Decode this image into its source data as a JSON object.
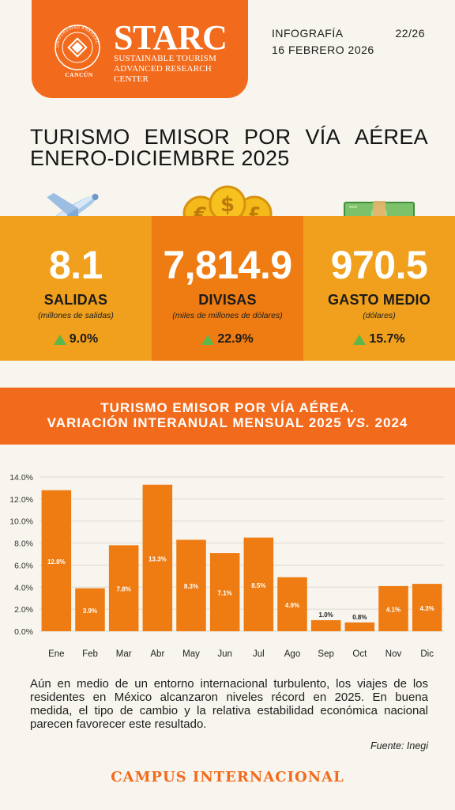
{
  "header": {
    "brand_name": "STARC",
    "brand_sub_1": "SUSTAINABLE TOURISM",
    "brand_sub_2": "ADVANCED RESEARCH CENTER",
    "seal_text": "CANCÚN",
    "seal_ring_text": "UNIVERSIDAD ANÁHUAC · VINCE IN BONO MALUM",
    "kind": "INFOGRAFÍA",
    "number": "22/26",
    "date": "16 FEBRERO 2026",
    "accent": "#f26b1d"
  },
  "title": {
    "line1_words": [
      "TURISMO",
      "EMISOR",
      "POR",
      "VÍA",
      "AÉREA"
    ],
    "line2": "ENERO-DICIEMBRE 2025"
  },
  "kpis": [
    {
      "icon": "airplane-icon",
      "value": "8.1",
      "label": "SALIDAS",
      "unit": "(millones de salidas)",
      "growth": "9.0%",
      "color": "#f0a01c"
    },
    {
      "icon": "coins-icon",
      "value": "7,814.9",
      "label": "DIVISAS",
      "unit": "(miles de millones de dólares)",
      "growth": "22.9%",
      "color": "#ee7c12"
    },
    {
      "icon": "cash-icon",
      "value": "970.5",
      "label": "GASTO MEDIO",
      "unit": "(dólares)",
      "growth": "15.7%",
      "color": "#f0a01c"
    }
  ],
  "banner": {
    "line1": "TURISMO EMISOR POR VÍA AÉREA.",
    "line2_prefix": "VARIACIÓN INTERANUAL MENSUAL 2025 ",
    "line2_vs": "VS.",
    "line2_suffix": " 2024"
  },
  "chart_data": {
    "type": "bar",
    "categories": [
      "Ene",
      "Feb",
      "Mar",
      "Abr",
      "May",
      "Jun",
      "Jul",
      "Ago",
      "Sep",
      "Oct",
      "Nov",
      "Dic"
    ],
    "values": [
      12.8,
      3.9,
      7.8,
      13.3,
      8.3,
      7.1,
      8.5,
      4.9,
      1.0,
      0.8,
      4.1,
      4.3
    ],
    "value_labels": [
      "12.8%",
      "3.9%",
      "7.8%",
      "13.3%",
      "8.3%",
      "7.1%",
      "8.5%",
      "4.9%",
      "1.0%",
      "0.8%",
      "4.1%",
      "4.3%"
    ],
    "yticks": [
      "0.0%",
      "2.0%",
      "4.0%",
      "6.0%",
      "8.0%",
      "10.0%",
      "12.0%",
      "14.0%"
    ],
    "ytick_values": [
      0,
      2,
      4,
      6,
      8,
      10,
      12,
      14
    ],
    "ylim": [
      0,
      14
    ],
    "grid": true,
    "bar_color": "#ee7c12"
  },
  "paragraph": "Aún en medio de un entorno internacional turbulento, los viajes de los residentes en México alcanzaron niveles récord en 2025. En buena medida, el tipo de cambio y la relativa estabilidad económica nacional parecen favorecer este resultado.",
  "source": "Fuente: Inegi",
  "footer": "CAMPUS INTERNACIONAL"
}
